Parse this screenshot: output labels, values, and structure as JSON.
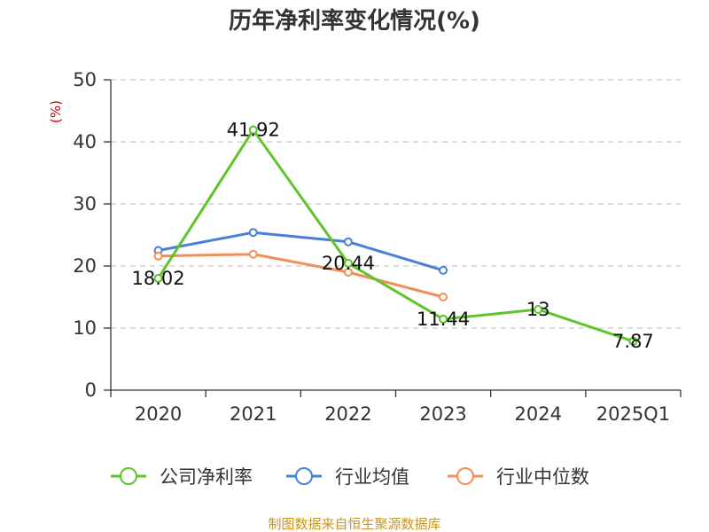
{
  "chart_data": {
    "type": "line",
    "title": "历年净利率变化情况(%)",
    "ylabel": "(%)",
    "xlabel": "",
    "categories": [
      "2020",
      "2021",
      "2022",
      "2023",
      "2024",
      "2025Q1"
    ],
    "ylim": [
      0,
      50
    ],
    "yticks": [
      0,
      10,
      20,
      30,
      40,
      50
    ],
    "grid": true,
    "legend_position": "bottom",
    "series": [
      {
        "name": "公司净利率",
        "color": "#5dc42a",
        "values": [
          18.02,
          41.92,
          20.44,
          11.44,
          13,
          7.87
        ],
        "labels": [
          "18.02",
          "41.92",
          "20.44",
          "11.44",
          "13",
          "7.87"
        ]
      },
      {
        "name": "行业均值",
        "color": "#4a7fd9",
        "values": [
          22.5,
          25.4,
          23.9,
          19.3,
          null,
          null
        ]
      },
      {
        "name": "行业中位数",
        "color": "#f28e5a",
        "values": [
          21.6,
          21.9,
          19.0,
          15.0,
          null,
          null
        ]
      }
    ]
  },
  "source_text": "制图数据来自恒生聚源数据库"
}
